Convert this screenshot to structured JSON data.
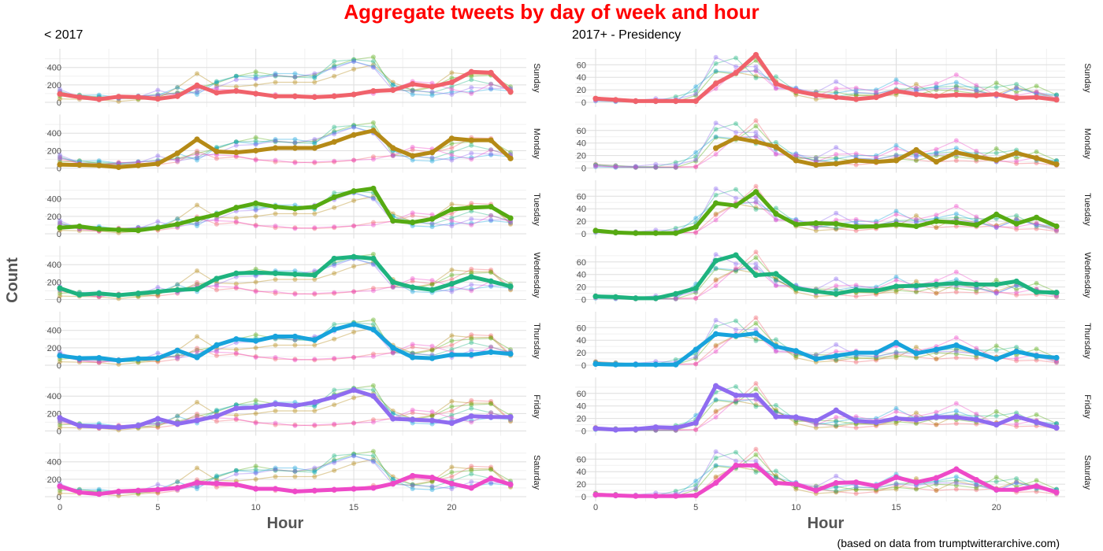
{
  "title": "Aggregate tweets by day of week and hour",
  "caption": "(based on data from trumptwitterarchive.com)",
  "colors": {
    "title": "#ff0000",
    "Sunday": "#f0626b",
    "Monday": "#b58a16",
    "Tuesday": "#56aa12",
    "Wednesday": "#1eb37f",
    "Thursday": "#17a3dc",
    "Friday": "#8f6cf0",
    "Saturday": "#ee49c8"
  },
  "chart_data": [
    {
      "type": "line",
      "subtitle": "< 2017",
      "xlabel": "Hour",
      "ylabel": "Count",
      "xlim": [
        0,
        23
      ],
      "ylim": [
        0,
        560
      ],
      "x_ticks": [
        0,
        5,
        10,
        15,
        20
      ],
      "y_ticks": [
        0,
        200,
        400
      ],
      "panels": [
        "Sunday",
        "Monday",
        "Tuesday",
        "Wednesday",
        "Thursday",
        "Friday",
        "Saturday"
      ],
      "x": [
        0,
        1,
        2,
        3,
        4,
        5,
        6,
        7,
        8,
        9,
        10,
        11,
        12,
        13,
        14,
        15,
        16,
        17,
        18,
        19,
        20,
        21,
        22,
        23
      ],
      "series": [
        {
          "name": "Sunday",
          "values": [
            95,
            60,
            35,
            65,
            60,
            40,
            70,
            195,
            110,
            130,
            100,
            70,
            70,
            60,
            70,
            90,
            130,
            140,
            210,
            180,
            230,
            350,
            340,
            120
          ]
        },
        {
          "name": "Monday",
          "values": [
            40,
            35,
            30,
            10,
            30,
            50,
            170,
            330,
            190,
            180,
            200,
            230,
            230,
            230,
            300,
            380,
            430,
            230,
            140,
            180,
            340,
            320,
            320,
            110
          ]
        },
        {
          "name": "Tuesday",
          "values": [
            70,
            85,
            55,
            45,
            40,
            70,
            110,
            170,
            220,
            300,
            350,
            310,
            290,
            310,
            420,
            490,
            520,
            150,
            130,
            170,
            280,
            300,
            310,
            180
          ]
        },
        {
          "name": "Wednesday",
          "values": [
            130,
            55,
            70,
            50,
            70,
            90,
            110,
            120,
            240,
            300,
            310,
            300,
            290,
            280,
            470,
            490,
            470,
            200,
            140,
            110,
            180,
            260,
            210,
            150
          ]
        },
        {
          "name": "Thursday",
          "values": [
            110,
            80,
            85,
            55,
            75,
            80,
            170,
            90,
            230,
            300,
            280,
            330,
            330,
            290,
            410,
            470,
            410,
            200,
            90,
            80,
            120,
            120,
            150,
            130
          ]
        },
        {
          "name": "Friday",
          "values": [
            150,
            60,
            50,
            40,
            60,
            140,
            80,
            120,
            170,
            260,
            270,
            310,
            290,
            330,
            390,
            470,
            400,
            140,
            130,
            120,
            90,
            170,
            160,
            160
          ]
        },
        {
          "name": "Saturday",
          "values": [
            120,
            50,
            30,
            60,
            70,
            80,
            100,
            160,
            150,
            140,
            90,
            90,
            60,
            70,
            80,
            90,
            100,
            150,
            240,
            220,
            150,
            100,
            210,
            140
          ]
        }
      ]
    },
    {
      "type": "line",
      "subtitle": "2017+ - Presidency",
      "xlabel": "Hour",
      "ylabel": "",
      "xlim": [
        0,
        23
      ],
      "ylim": [
        0,
        78
      ],
      "x_ticks": [
        0,
        5,
        10,
        15,
        20
      ],
      "y_ticks": [
        0,
        20,
        40,
        60
      ],
      "panels": [
        "Sunday",
        "Monday",
        "Tuesday",
        "Wednesday",
        "Thursday",
        "Friday",
        "Saturday"
      ],
      "x": [
        0,
        1,
        2,
        3,
        4,
        5,
        6,
        7,
        8,
        9,
        10,
        11,
        12,
        13,
        14,
        15,
        16,
        17,
        18,
        19,
        20,
        21,
        22,
        23
      ],
      "series": [
        {
          "name": "Sunday",
          "values": [
            6,
            4,
            2,
            2,
            2,
            2,
            30,
            47,
            76,
            30,
            18,
            12,
            8,
            5,
            8,
            18,
            13,
            10,
            12,
            11,
            13,
            7,
            8,
            4
          ]
        },
        {
          "name": "Monday",
          "values": [
            null,
            null,
            null,
            null,
            null,
            null,
            32,
            48,
            42,
            34,
            12,
            5,
            7,
            12,
            10,
            12,
            29,
            10,
            25,
            18,
            13,
            24,
            16,
            6
          ]
        },
        {
          "name": "Tuesday",
          "values": [
            5,
            2,
            1,
            1,
            1,
            11,
            49,
            45,
            67,
            32,
            15,
            17,
            16,
            11,
            12,
            15,
            12,
            20,
            18,
            14,
            31,
            16,
            26,
            12
          ]
        },
        {
          "name": "Wednesday",
          "values": [
            5,
            4,
            2,
            2,
            9,
            18,
            62,
            71,
            39,
            41,
            18,
            13,
            9,
            15,
            14,
            21,
            22,
            24,
            26,
            24,
            24,
            29,
            12,
            11
          ]
        },
        {
          "name": "Thursday",
          "values": [
            2,
            1,
            1,
            1,
            1,
            25,
            50,
            47,
            51,
            30,
            23,
            10,
            15,
            20,
            20,
            36,
            19,
            25,
            32,
            20,
            10,
            22,
            15,
            12
          ]
        },
        {
          "name": "Friday",
          "values": [
            4,
            2,
            3,
            6,
            5,
            13,
            72,
            57,
            57,
            23,
            22,
            16,
            33,
            16,
            14,
            20,
            18,
            22,
            22,
            18,
            10,
            23,
            14,
            5
          ]
        },
        {
          "name": "Saturday",
          "values": [
            3,
            2,
            1,
            1,
            1,
            2,
            22,
            50,
            50,
            22,
            20,
            10,
            22,
            23,
            17,
            31,
            23,
            30,
            44,
            27,
            11,
            11,
            17,
            7
          ]
        }
      ]
    }
  ]
}
